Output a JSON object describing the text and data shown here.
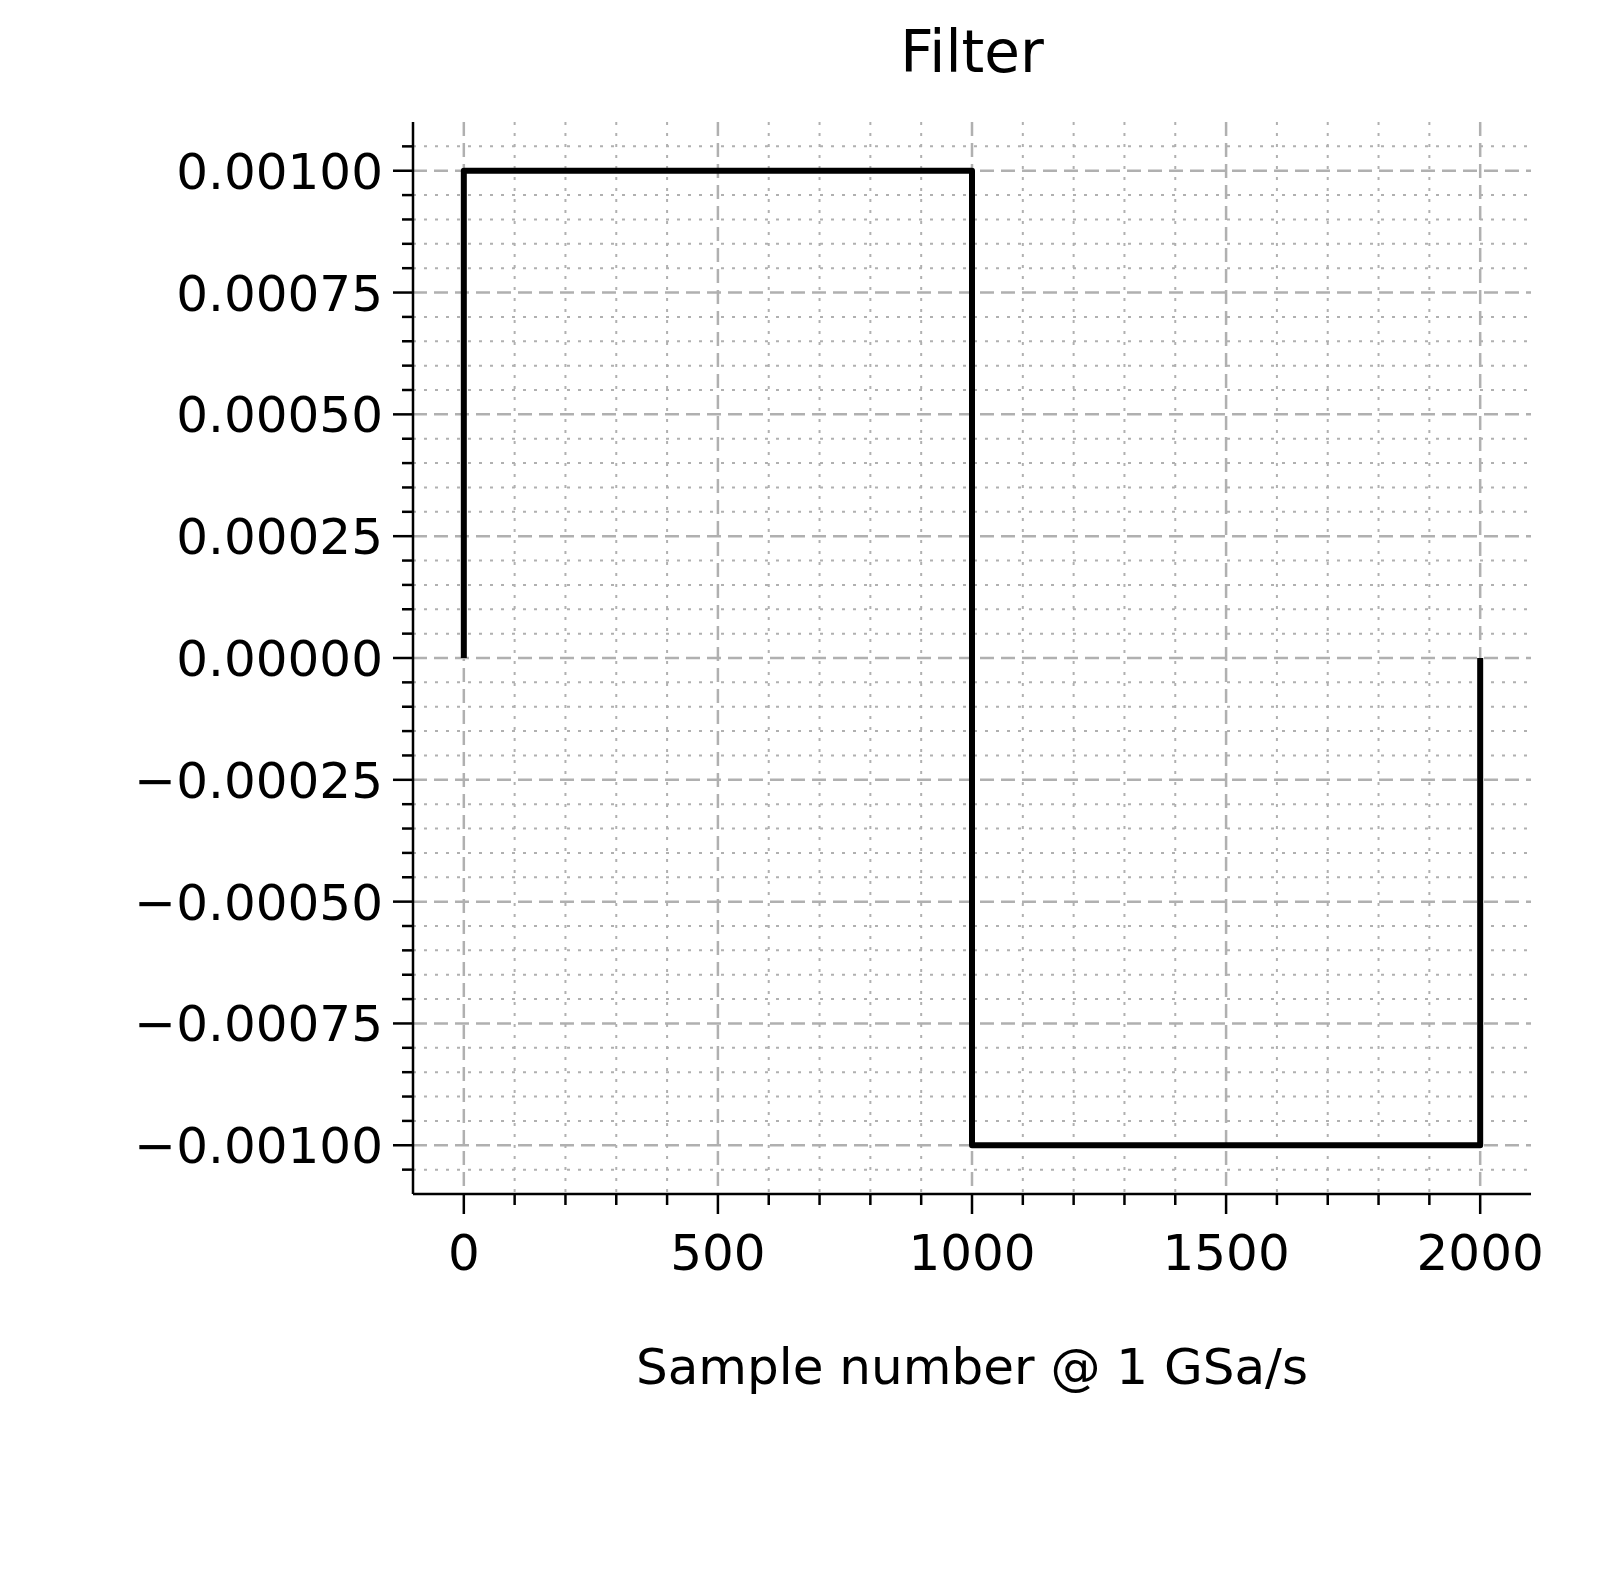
{
  "chart_data": {
    "type": "line",
    "title": "Filter",
    "xlabel": "Sample number @ 1 GSa/s",
    "x": [
      0,
      0,
      1000,
      1000,
      2000,
      2000
    ],
    "series": [
      {
        "color": "#000000",
        "values": [
          0,
          0.001,
          0.001,
          -0.001,
          -0.001,
          0
        ]
      }
    ],
    "xlim": [
      -100,
      2100
    ],
    "ylim": [
      -0.0011,
      0.0011
    ],
    "xticks": [
      {
        "value": 0,
        "label": "0"
      },
      {
        "value": 100,
        "label": null
      },
      {
        "value": 200,
        "label": null
      },
      {
        "value": 300,
        "label": null
      },
      {
        "value": 400,
        "label": null
      },
      {
        "value": 500,
        "label": "500"
      },
      {
        "value": 600,
        "label": null
      },
      {
        "value": 700,
        "label": null
      },
      {
        "value": 800,
        "label": null
      },
      {
        "value": 900,
        "label": null
      },
      {
        "value": 1000,
        "label": "1000"
      },
      {
        "value": 1100,
        "label": null
      },
      {
        "value": 1200,
        "label": null
      },
      {
        "value": 1300,
        "label": null
      },
      {
        "value": 1400,
        "label": null
      },
      {
        "value": 1500,
        "label": "1500"
      },
      {
        "value": 1600,
        "label": null
      },
      {
        "value": 1700,
        "label": null
      },
      {
        "value": 1800,
        "label": null
      },
      {
        "value": 1900,
        "label": null
      },
      {
        "value": 2000,
        "label": "2000"
      }
    ],
    "yticks": [
      {
        "value": -0.00105,
        "label": null
      },
      {
        "value": -0.001,
        "label": "−0.00100"
      },
      {
        "value": -0.00095,
        "label": null
      },
      {
        "value": -0.0009,
        "label": null
      },
      {
        "value": -0.00085,
        "label": null
      },
      {
        "value": -0.0008,
        "label": null
      },
      {
        "value": -0.00075,
        "label": "−0.00075"
      },
      {
        "value": -0.0007,
        "label": null
      },
      {
        "value": -0.00065,
        "label": null
      },
      {
        "value": -0.0006,
        "label": null
      },
      {
        "value": -0.00055,
        "label": null
      },
      {
        "value": -0.0005,
        "label": "−0.00050"
      },
      {
        "value": -0.00045,
        "label": null
      },
      {
        "value": -0.0004,
        "label": null
      },
      {
        "value": -0.00035,
        "label": null
      },
      {
        "value": -0.0003,
        "label": null
      },
      {
        "value": -0.00025,
        "label": "−0.00025"
      },
      {
        "value": -0.0002,
        "label": null
      },
      {
        "value": -0.00015,
        "label": null
      },
      {
        "value": -0.0001,
        "label": null
      },
      {
        "value": -5e-05,
        "label": null
      },
      {
        "value": 0,
        "label": "0.00000"
      },
      {
        "value": 5e-05,
        "label": null
      },
      {
        "value": 0.0001,
        "label": null
      },
      {
        "value": 0.00015,
        "label": null
      },
      {
        "value": 0.0002,
        "label": null
      },
      {
        "value": 0.00025,
        "label": "0.00025"
      },
      {
        "value": 0.0003,
        "label": null
      },
      {
        "value": 0.00035,
        "label": null
      },
      {
        "value": 0.0004,
        "label": null
      },
      {
        "value": 0.00045,
        "label": null
      },
      {
        "value": 0.0005,
        "label": "0.00050"
      },
      {
        "value": 0.00055,
        "label": null
      },
      {
        "value": 0.0006,
        "label": null
      },
      {
        "value": 0.00065,
        "label": null
      },
      {
        "value": 0.0007,
        "label": null
      },
      {
        "value": 0.00075,
        "label": "0.00075"
      },
      {
        "value": 0.0008,
        "label": null
      },
      {
        "value": 0.00085,
        "label": null
      },
      {
        "value": 0.0009,
        "label": null
      },
      {
        "value": 0.00095,
        "label": null
      },
      {
        "value": 0.001,
        "label": "0.00100"
      },
      {
        "value": 0.00105,
        "label": null
      }
    ],
    "grid": true
  }
}
